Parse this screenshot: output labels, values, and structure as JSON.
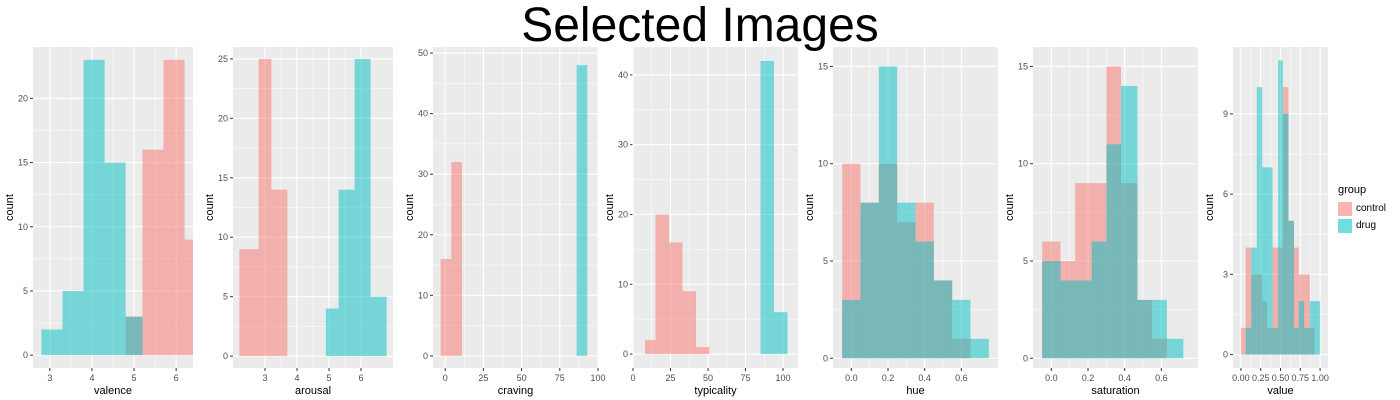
{
  "title": "Selected Images",
  "colors": {
    "control": "#F8766D",
    "drug": "#00BFC4",
    "panel": "#EBEBEB",
    "grid": "#FFFFFF"
  },
  "legend": {
    "title": "group",
    "items": [
      {
        "label": "control",
        "color": "#F8766D"
      },
      {
        "label": "drug",
        "color": "#00BFC4"
      }
    ]
  },
  "chart_data": [
    {
      "type": "histogram",
      "xlabel": "valence",
      "ylabel": "count",
      "xlim": [
        2.6,
        6.4
      ],
      "ylim": [
        -1,
        24
      ],
      "xticks": [
        3,
        4,
        5,
        6
      ],
      "yticks": [
        0,
        5,
        10,
        15,
        20
      ],
      "series": [
        {
          "name": "control",
          "bins": [
            [
              4.8,
              5.2,
              3
            ],
            [
              5.2,
              5.7,
              16
            ],
            [
              5.7,
              6.2,
              23
            ],
            [
              6.2,
              6.7,
              9
            ]
          ]
        },
        {
          "name": "drug",
          "bins": [
            [
              2.8,
              3.3,
              2
            ],
            [
              3.3,
              3.8,
              5
            ],
            [
              3.8,
              4.3,
              23
            ],
            [
              4.3,
              4.8,
              15
            ],
            [
              4.8,
              5.2,
              3
            ]
          ]
        }
      ]
    },
    {
      "type": "histogram",
      "xlabel": "arousal",
      "ylabel": "count",
      "xlim": [
        2.0,
        7.0
      ],
      "ylim": [
        -1,
        26
      ],
      "xticks": [
        3,
        4,
        5,
        6
      ],
      "yticks": [
        0,
        5,
        10,
        15,
        20,
        25
      ],
      "series": [
        {
          "name": "control",
          "bins": [
            [
              2.2,
              2.8,
              9
            ],
            [
              2.8,
              3.2,
              25
            ],
            [
              3.2,
              3.7,
              14
            ]
          ]
        },
        {
          "name": "drug",
          "bins": [
            [
              4.9,
              5.3,
              4
            ],
            [
              5.3,
              5.8,
              14
            ],
            [
              5.8,
              6.3,
              25
            ],
            [
              6.3,
              6.8,
              5
            ]
          ]
        }
      ]
    },
    {
      "type": "histogram",
      "xlabel": "craving",
      "ylabel": "count",
      "xlim": [
        -8,
        100
      ],
      "ylim": [
        -2,
        51
      ],
      "xticks": [
        0,
        25,
        50,
        75,
        100
      ],
      "xticklabels": [
        "0",
        "25",
        "50",
        "75",
        "100"
      ],
      "yticks": [
        0,
        10,
        20,
        30,
        40,
        50
      ],
      "series": [
        {
          "name": "control",
          "bins": [
            [
              -3,
              4,
              16
            ],
            [
              4,
              11,
              32
            ]
          ]
        },
        {
          "name": "drug",
          "bins": [
            [
              86,
              93,
              48
            ]
          ]
        }
      ]
    },
    {
      "type": "histogram",
      "xlabel": "typicality",
      "ylabel": "count",
      "xlim": [
        0,
        110
      ],
      "ylim": [
        -2,
        44
      ],
      "xticks": [
        0,
        25,
        50,
        75,
        100
      ],
      "yticks": [
        0,
        10,
        20,
        30,
        40
      ],
      "series": [
        {
          "name": "control",
          "bins": [
            [
              8,
              15,
              2
            ],
            [
              15,
              24,
              20
            ],
            [
              24,
              33,
              16
            ],
            [
              33,
              42,
              9
            ],
            [
              42,
              51,
              1
            ]
          ]
        },
        {
          "name": "drug",
          "bins": [
            [
              85,
              94,
              42
            ],
            [
              94,
              103,
              6
            ]
          ]
        }
      ]
    },
    {
      "type": "histogram",
      "xlabel": "hue",
      "ylabel": "count",
      "xlim": [
        -0.1,
        0.8
      ],
      "ylim": [
        -0.5,
        16
      ],
      "xticks": [
        0.0,
        0.2,
        0.4,
        0.6
      ],
      "xticklabels": [
        "0.0",
        "0.2",
        "0.4",
        "0.6"
      ],
      "yticks": [
        0,
        5,
        10,
        15
      ],
      "series": [
        {
          "name": "control",
          "bins": [
            [
              -0.05,
              0.05,
              10
            ],
            [
              0.05,
              0.15,
              8
            ],
            [
              0.15,
              0.25,
              10
            ],
            [
              0.25,
              0.35,
              7
            ],
            [
              0.35,
              0.45,
              8
            ],
            [
              0.45,
              0.55,
              4
            ],
            [
              0.55,
              0.65,
              1
            ]
          ]
        },
        {
          "name": "drug",
          "bins": [
            [
              -0.05,
              0.05,
              3
            ],
            [
              0.05,
              0.15,
              8
            ],
            [
              0.15,
              0.25,
              15
            ],
            [
              0.25,
              0.35,
              8
            ],
            [
              0.35,
              0.45,
              6
            ],
            [
              0.45,
              0.55,
              4
            ],
            [
              0.55,
              0.65,
              3
            ],
            [
              0.65,
              0.75,
              1
            ]
          ]
        }
      ]
    },
    {
      "type": "histogram",
      "xlabel": "saturation",
      "ylabel": "count",
      "xlim": [
        -0.1,
        0.8
      ],
      "ylim": [
        -0.5,
        16
      ],
      "xticks": [
        0.0,
        0.2,
        0.4,
        0.6
      ],
      "xticklabels": [
        "0.0",
        "0.2",
        "0.4",
        "0.6"
      ],
      "yticks": [
        0,
        5,
        10,
        15
      ],
      "series": [
        {
          "name": "control",
          "bins": [
            [
              -0.05,
              0.05,
              6
            ],
            [
              0.05,
              0.13,
              5
            ],
            [
              0.13,
              0.22,
              9
            ],
            [
              0.22,
              0.3,
              9
            ],
            [
              0.3,
              0.38,
              15
            ],
            [
              0.38,
              0.47,
              9
            ],
            [
              0.47,
              0.55,
              3
            ],
            [
              0.55,
              0.63,
              1
            ]
          ]
        },
        {
          "name": "drug",
          "bins": [
            [
              -0.05,
              0.05,
              5
            ],
            [
              0.05,
              0.13,
              4
            ],
            [
              0.13,
              0.22,
              4
            ],
            [
              0.22,
              0.3,
              6
            ],
            [
              0.3,
              0.38,
              11
            ],
            [
              0.38,
              0.47,
              14
            ],
            [
              0.47,
              0.55,
              3
            ],
            [
              0.55,
              0.63,
              3
            ],
            [
              0.63,
              0.72,
              1
            ]
          ]
        }
      ]
    },
    {
      "type": "histogram",
      "xlabel": "value",
      "ylabel": "count",
      "xlim": [
        -0.1,
        1.1
      ],
      "ylim": [
        -0.5,
        11.5
      ],
      "xticks": [
        0.0,
        0.25,
        0.5,
        0.75,
        1.0
      ],
      "xticklabels": [
        "0.00",
        "0.25",
        "0.50",
        "0.75",
        "1.00"
      ],
      "yticks": [
        0,
        3,
        6,
        9
      ],
      "series": [
        {
          "name": "control",
          "bins": [
            [
              0.0,
              0.06,
              1
            ],
            [
              0.06,
              0.13,
              4
            ],
            [
              0.13,
              0.2,
              3
            ],
            [
              0.2,
              0.27,
              3
            ],
            [
              0.27,
              0.33,
              2
            ],
            [
              0.33,
              0.4,
              1
            ],
            [
              0.4,
              0.47,
              4
            ],
            [
              0.47,
              0.53,
              4
            ],
            [
              0.53,
              0.6,
              10
            ],
            [
              0.6,
              0.67,
              5
            ],
            [
              0.67,
              0.73,
              4
            ],
            [
              0.73,
              0.8,
              3
            ],
            [
              0.8,
              0.87,
              3
            ],
            [
              0.87,
              0.93,
              1
            ]
          ]
        },
        {
          "name": "drug",
          "bins": [
            [
              0.06,
              0.13,
              1
            ],
            [
              0.13,
              0.2,
              4
            ],
            [
              0.2,
              0.27,
              10
            ],
            [
              0.27,
              0.33,
              7
            ],
            [
              0.33,
              0.4,
              7
            ],
            [
              0.4,
              0.47,
              1
            ],
            [
              0.47,
              0.53,
              11
            ],
            [
              0.53,
              0.6,
              9
            ],
            [
              0.6,
              0.67,
              5
            ],
            [
              0.67,
              0.73,
              1
            ],
            [
              0.73,
              0.8,
              2
            ],
            [
              0.8,
              0.87,
              1
            ],
            [
              0.87,
              0.93,
              2
            ],
            [
              0.93,
              1.0,
              2
            ]
          ]
        }
      ]
    }
  ]
}
